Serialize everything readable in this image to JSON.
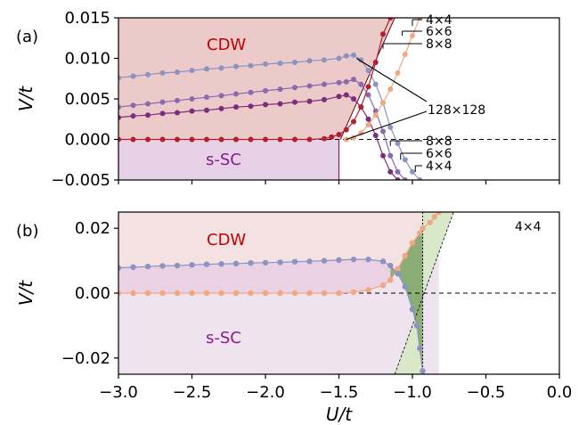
{
  "chart_data": [
    {
      "panel_label": "(a)",
      "type": "line",
      "ylabel": "V/t",
      "xlim": [
        -3.0,
        0.0
      ],
      "ylim": [
        -0.005,
        0.015
      ],
      "xticks": [
        -3.0,
        -2.5,
        -2.0,
        -1.5,
        -1.0,
        -0.5,
        0.0
      ],
      "yticks": [
        "0.015",
        "0.010",
        "0.005",
        "0.000",
        "−0.005"
      ],
      "ytick_values": [
        0.015,
        0.01,
        0.005,
        0.0,
        -0.005
      ],
      "region_labels": {
        "cdw": "CDW",
        "ssc": "s-SC"
      },
      "annotations": [
        {
          "text": "4×4",
          "target": [
            -1.0,
            0.014
          ],
          "side": "top"
        },
        {
          "text": "6×6",
          "target": [
            -1.07,
            0.0128
          ],
          "side": "top"
        },
        {
          "text": "8×8",
          "target": [
            -1.2,
            0.0112
          ],
          "side": "top"
        },
        {
          "text": "128×128",
          "target": [
            -1.38,
            0.01
          ],
          "side": "top"
        },
        {
          "text": "128×128",
          "target": [
            -1.45,
            0.0
          ],
          "side": "bottom"
        },
        {
          "text": "8×8",
          "target": [
            -1.15,
            -0.0008
          ],
          "side": "bottom"
        },
        {
          "text": "6×6",
          "target": [
            -1.08,
            -0.0025
          ],
          "side": "bottom"
        },
        {
          "text": "4×4",
          "target": [
            -0.98,
            -0.004
          ],
          "side": "bottom"
        }
      ],
      "colors": {
        "cdw_fill": "#eccaca",
        "ssc_fill": "#e6d1e6",
        "ssc_edge": "#8b1a89",
        "l128": "#8b93c2",
        "l8": "#8a6aad",
        "l6": "#7c2e7c",
        "l4": "#b02030",
        "lpeach": "#f0a882",
        "dashed": "#000000"
      },
      "series": [
        {
          "color_key": "l128",
          "x": [
            -3.0,
            -2.9,
            -2.8,
            -2.7,
            -2.6,
            -2.5,
            -2.4,
            -2.3,
            -2.2,
            -2.1,
            -2.0,
            -1.9,
            -1.8,
            -1.7,
            -1.6,
            -1.5,
            -1.45,
            -1.4,
            -1.35,
            -1.3,
            -1.25,
            -1.2,
            -1.15,
            -1.1,
            -1.05,
            -1.0,
            -0.95
          ],
          "y": [
            0.0076,
            0.0078,
            0.008,
            0.0082,
            0.0083,
            0.0085,
            0.0087,
            0.0088,
            0.009,
            0.0091,
            0.0093,
            0.0094,
            0.0095,
            0.0097,
            0.0098,
            0.01,
            0.0103,
            0.0104,
            0.0098,
            0.0085,
            0.0068,
            0.0045,
            0.0015,
            -0.0005,
            -0.0025,
            -0.004,
            -0.005
          ]
        },
        {
          "color_key": "l8",
          "x": [
            -3.0,
            -2.9,
            -2.8,
            -2.7,
            -2.6,
            -2.5,
            -2.4,
            -2.3,
            -2.2,
            -2.1,
            -2.0,
            -1.9,
            -1.8,
            -1.7,
            -1.6,
            -1.5,
            -1.45,
            -1.4,
            -1.35,
            -1.3,
            -1.25,
            -1.2,
            -1.15,
            -1.1,
            -1.05
          ],
          "y": [
            0.004,
            0.0042,
            0.0044,
            0.0046,
            0.0048,
            0.005,
            0.0052,
            0.0054,
            0.0056,
            0.0058,
            0.006,
            0.0062,
            0.0064,
            0.0066,
            0.0068,
            0.007,
            0.0071,
            0.0074,
            0.0068,
            0.0055,
            0.0035,
            0.001,
            -0.002,
            -0.004,
            -0.005
          ]
        },
        {
          "color_key": "l6",
          "x": [
            -3.0,
            -2.9,
            -2.8,
            -2.7,
            -2.6,
            -2.5,
            -2.4,
            -2.3,
            -2.2,
            -2.1,
            -2.0,
            -1.9,
            -1.8,
            -1.7,
            -1.6,
            -1.5,
            -1.45,
            -1.4,
            -1.35,
            -1.3,
            -1.25,
            -1.2,
            -1.15,
            -1.1
          ],
          "y": [
            0.0027,
            0.0029,
            0.003,
            0.0032,
            0.0033,
            0.0035,
            0.0036,
            0.0038,
            0.004,
            0.0041,
            0.0043,
            0.0044,
            0.0046,
            0.0047,
            0.0049,
            0.0053,
            0.0055,
            0.005,
            0.004,
            0.0025,
            0.0005,
            -0.002,
            -0.004,
            -0.005
          ]
        },
        {
          "color_key": "l4",
          "x": [
            -3.0,
            -2.9,
            -2.8,
            -2.7,
            -2.6,
            -2.5,
            -2.4,
            -2.3,
            -2.2,
            -2.1,
            -2.0,
            -1.9,
            -1.8,
            -1.7,
            -1.6,
            -1.55,
            -1.5,
            -1.45,
            -1.4,
            -1.35,
            -1.3,
            -1.25,
            -1.2,
            -1.15
          ],
          "y": [
            0.0,
            0.0,
            0.0,
            0.0,
            0.0,
            0.0,
            0.0,
            0.0,
            0.0,
            0.0,
            0.0,
            0.0,
            0.0,
            0.0,
            0.0001,
            0.0003,
            0.0006,
            0.0012,
            0.0022,
            0.004,
            0.0065,
            0.0095,
            0.013,
            0.015
          ]
        },
        {
          "color_key": "lpeach",
          "x": [
            -1.45,
            -1.4,
            -1.35,
            -1.3,
            -1.25,
            -1.2,
            -1.15,
            -1.1,
            -1.05,
            -1.0,
            -0.95
          ],
          "y": [
            0.0,
            0.0002,
            0.0008,
            0.0018,
            0.003,
            0.0045,
            0.0062,
            0.0082,
            0.0105,
            0.0128,
            0.015
          ]
        }
      ],
      "phase_boundary": {
        "x": [
          -1.49,
          -1.12
        ],
        "y": [
          0.0,
          0.015
        ]
      },
      "ssc_region": {
        "x": [
          -3.0,
          -1.5
        ],
        "y": [
          -0.005,
          0.0
        ]
      }
    },
    {
      "panel_label": "(b)",
      "type": "line",
      "xlabel": "U/t",
      "ylabel": "V/t",
      "xlim": [
        -3.0,
        0.0
      ],
      "ylim": [
        -0.025,
        0.025
      ],
      "xticks": [
        -3.0,
        -2.5,
        -2.0,
        -1.5,
        -1.0,
        -0.5,
        0.0
      ],
      "xtick_labels": [
        "−3.0",
        "−2.5",
        "−2.0",
        "−1.5",
        "−1.0",
        "−0.5",
        "0.0"
      ],
      "yticks": [
        "0.02",
        "0.00",
        "−0.02"
      ],
      "ytick_values": [
        0.02,
        0.0,
        -0.02
      ],
      "size_label": "4×4",
      "region_labels": {
        "cdw": "CDW",
        "ssc": "s-SC"
      },
      "colors": {
        "cdw_fill": "#f4e2e2",
        "ssc_fill": "#f0e3f0",
        "overlap_fill": "#e8cce0",
        "green_dark": "#8aad75",
        "green_light": "#d8e8c8",
        "blue": "#8b93c2",
        "peach": "#f0a882"
      },
      "series": [
        {
          "color_key": "blue",
          "x": [
            -3.0,
            -2.9,
            -2.8,
            -2.7,
            -2.6,
            -2.5,
            -2.4,
            -2.3,
            -2.2,
            -2.1,
            -2.0,
            -1.9,
            -1.8,
            -1.7,
            -1.6,
            -1.5,
            -1.4,
            -1.3,
            -1.2,
            -1.15,
            -1.1,
            -1.05,
            -1.0,
            -0.97,
            -0.95,
            -0.93
          ],
          "y": [
            0.0078,
            0.008,
            0.0082,
            0.0084,
            0.0085,
            0.0087,
            0.0089,
            0.009,
            0.0091,
            0.0093,
            0.0094,
            0.0095,
            0.0097,
            0.0098,
            0.01,
            0.0102,
            0.0104,
            0.0104,
            0.0098,
            0.0085,
            0.006,
            0.002,
            -0.005,
            -0.01,
            -0.017,
            -0.024
          ]
        },
        {
          "color_key": "peach",
          "x": [
            -3.0,
            -2.9,
            -2.8,
            -2.7,
            -2.6,
            -2.5,
            -2.4,
            -2.3,
            -2.2,
            -2.1,
            -2.0,
            -1.9,
            -1.8,
            -1.7,
            -1.6,
            -1.5,
            -1.4,
            -1.3,
            -1.2,
            -1.15,
            -1.1,
            -1.05,
            -1.0,
            -0.95,
            -0.93,
            -0.88,
            -0.85,
            -0.82
          ],
          "y": [
            0.0,
            0.0,
            0.0,
            0.0,
            0.0,
            0.0,
            0.0,
            0.0,
            0.0,
            0.0,
            0.0,
            0.0,
            0.0,
            0.0,
            0.0,
            0.0,
            0.0003,
            0.001,
            0.0024,
            0.004,
            0.0075,
            0.0115,
            0.0155,
            0.0185,
            0.02,
            0.0218,
            0.0235,
            0.025
          ]
        }
      ],
      "vline_x": -0.93,
      "diag_line": {
        "x": [
          -1.12,
          -0.72
        ],
        "y": [
          -0.025,
          0.025
        ]
      }
    }
  ]
}
